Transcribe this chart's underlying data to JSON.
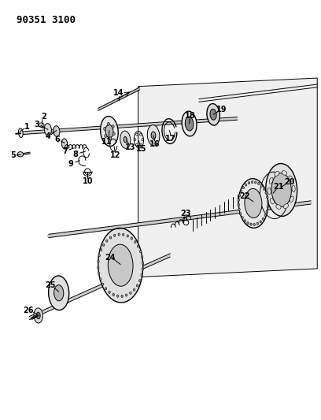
{
  "title": "90351 3100",
  "bg_color": "#ffffff",
  "line_color": "#000000",
  "fig_width": 4.08,
  "fig_height": 5.33,
  "dpi": 100
}
